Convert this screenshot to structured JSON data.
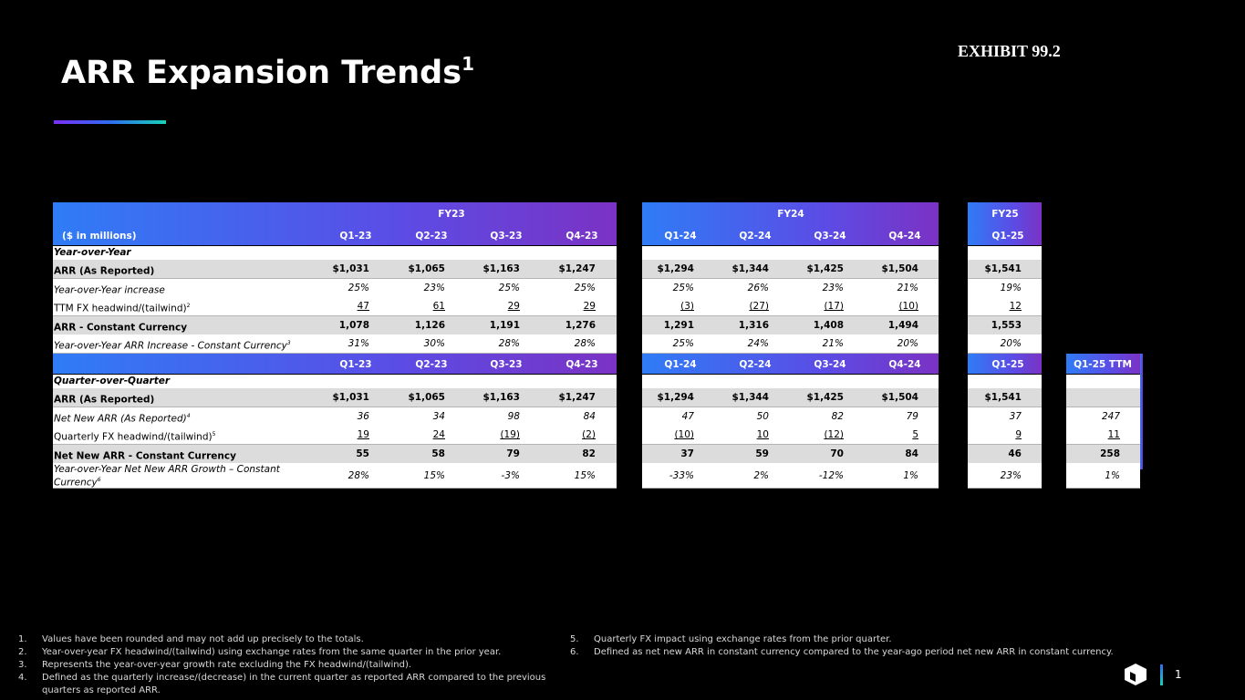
{
  "exhibit": "EXHIBIT 99.2",
  "title": "ARR Expansion Trends",
  "title_sup": "1",
  "colors": {
    "gradient_start": "#2f7cf6",
    "gradient_end": "#7b32c4",
    "row_gray": "#dcdcdc"
  },
  "table": {
    "unit_label": "($ in millions)",
    "fy_labels": [
      "FY23",
      "FY24",
      "FY25"
    ],
    "quarters_top": [
      "Q1-23",
      "Q2-23",
      "Q3-23",
      "Q4-23",
      "Q1-24",
      "Q2-24",
      "Q3-24",
      "Q4-24",
      "Q1-25"
    ],
    "yoy_section_label": "Year-over-Year",
    "yoy_rows": [
      {
        "label": "ARR (As Reported)",
        "sup": "",
        "values": [
          "$1,031",
          "$1,065",
          "$1,163",
          "$1,247",
          "$1,294",
          "$1,344",
          "$1,425",
          "$1,504",
          "$1,541"
        ]
      },
      {
        "label": "Year-over-Year increase",
        "sup": "",
        "values": [
          "25%",
          "23%",
          "25%",
          "25%",
          "25%",
          "26%",
          "23%",
          "21%",
          "19%"
        ]
      },
      {
        "label": "TTM FX headwind/(tailwind)",
        "sup": "2",
        "values": [
          "47",
          "61",
          "29",
          "29",
          "(3)",
          "(27)",
          "(17)",
          "(10)",
          "12"
        ]
      },
      {
        "label": "ARR - Constant Currency",
        "sup": "",
        "values": [
          "1,078",
          "1,126",
          "1,191",
          "1,276",
          "1,291",
          "1,316",
          "1,408",
          "1,494",
          "1,553"
        ]
      },
      {
        "label": "Year-over-Year ARR Increase - Constant Currency",
        "sup": "3",
        "values": [
          "31%",
          "30%",
          "28%",
          "28%",
          "25%",
          "24%",
          "21%",
          "20%",
          "20%"
        ]
      }
    ],
    "quarters_mid": [
      "Q1-23",
      "Q2-23",
      "Q3-23",
      "Q4-23",
      "Q1-24",
      "Q2-24",
      "Q3-24",
      "Q4-24",
      "Q1-25",
      "Q1-25 TTM"
    ],
    "qoq_section_label": "Quarter-over-Quarter",
    "qoq_rows": [
      {
        "label": "ARR (As Reported)",
        "sup": "",
        "values": [
          "$1,031",
          "$1,065",
          "$1,163",
          "$1,247",
          "$1,294",
          "$1,344",
          "$1,425",
          "$1,504",
          "$1,541",
          ""
        ]
      },
      {
        "label": "Net New ARR (As Reported)",
        "sup": "4",
        "values": [
          "36",
          "34",
          "98",
          "84",
          "47",
          "50",
          "82",
          "79",
          "37",
          "247"
        ]
      },
      {
        "label": "Quarterly FX headwind/(tailwind)",
        "sup": "5",
        "values": [
          "19",
          "24",
          "(19)",
          "(2)",
          "(10)",
          "10",
          "(12)",
          "5",
          "9",
          "11"
        ]
      },
      {
        "label": "Net New ARR - Constant Currency",
        "sup": "",
        "values": [
          "55",
          "58",
          "79",
          "82",
          "37",
          "59",
          "70",
          "84",
          "46",
          "258"
        ]
      },
      {
        "label": "Year-over-Year Net New ARR Growth – Constant Currency",
        "sup": "6",
        "values": [
          "28%",
          "15%",
          "-3%",
          "15%",
          "-33%",
          "2%",
          "-12%",
          "1%",
          "23%",
          "1%"
        ]
      }
    ]
  },
  "footnotes_left": [
    {
      "num": "1.",
      "text": "Values have been rounded and may not add up precisely to the totals."
    },
    {
      "num": "2.",
      "text": "Year-over-year FX headwind/(tailwind) using exchange rates from the same quarter in the prior year."
    },
    {
      "num": "3.",
      "text": "Represents the year-over-year growth rate excluding the FX headwind/(tailwind)."
    },
    {
      "num": "4.",
      "text": "Defined as the quarterly increase/(decrease) in the current quarter as reported ARR compared to the previous quarters as reported ARR."
    }
  ],
  "footnotes_right": [
    {
      "num": "5.",
      "text": "Quarterly FX impact using exchange rates from the prior quarter."
    },
    {
      "num": "6.",
      "text": "Defined as net new ARR in constant currency compared to the year-ago period net new ARR in constant currency."
    }
  ],
  "page_number": "1",
  "logo_icon": "cube-logo-icon"
}
